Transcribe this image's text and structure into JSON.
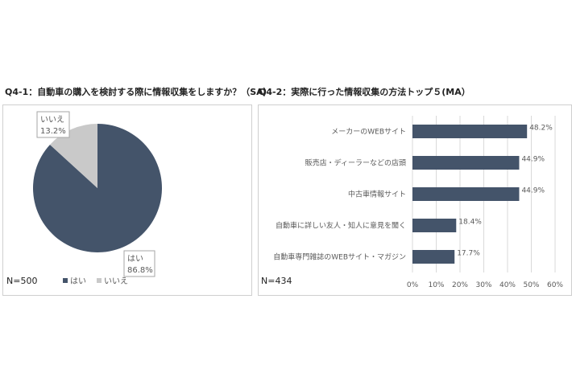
{
  "colors": {
    "primary": "#44546a",
    "secondary": "#c9c9c9",
    "grid": "#d9d9d9",
    "text": "#595959"
  },
  "chart_data": [
    {
      "type": "pie",
      "title": "Q4-1：自動車の購入を検討する際に情報収集をしますか？（SA）",
      "n_label": "N=500",
      "legend_position": "bottom",
      "slices": [
        {
          "label": "はい",
          "value": 86.8,
          "display": "86.8%",
          "color": "#44546a"
        },
        {
          "label": "いいえ",
          "value": 13.2,
          "display": "13.2%",
          "color": "#c9c9c9"
        }
      ]
    },
    {
      "type": "bar",
      "orientation": "horizontal",
      "title": "Q4-2：実際に行った情報収集の方法トップ５(MA）",
      "n_label": "N=434",
      "categories": [
        "メーカーのWEBサイト",
        "販売店・ディーラーなどの店頭",
        "中古車情報サイト",
        "自動車に詳しい友人・知人に意見を聞く",
        "自動車専門雑誌のWEBサイト・マガジン"
      ],
      "values": [
        48.2,
        44.9,
        44.9,
        18.4,
        17.7
      ],
      "value_labels": [
        "48.2%",
        "44.9%",
        "44.9%",
        "18.4%",
        "17.7%"
      ],
      "xlim": [
        0,
        60
      ],
      "xticks": [
        "0%",
        "10%",
        "20%",
        "30%",
        "40%",
        "50%",
        "60%"
      ],
      "grid": true
    }
  ]
}
